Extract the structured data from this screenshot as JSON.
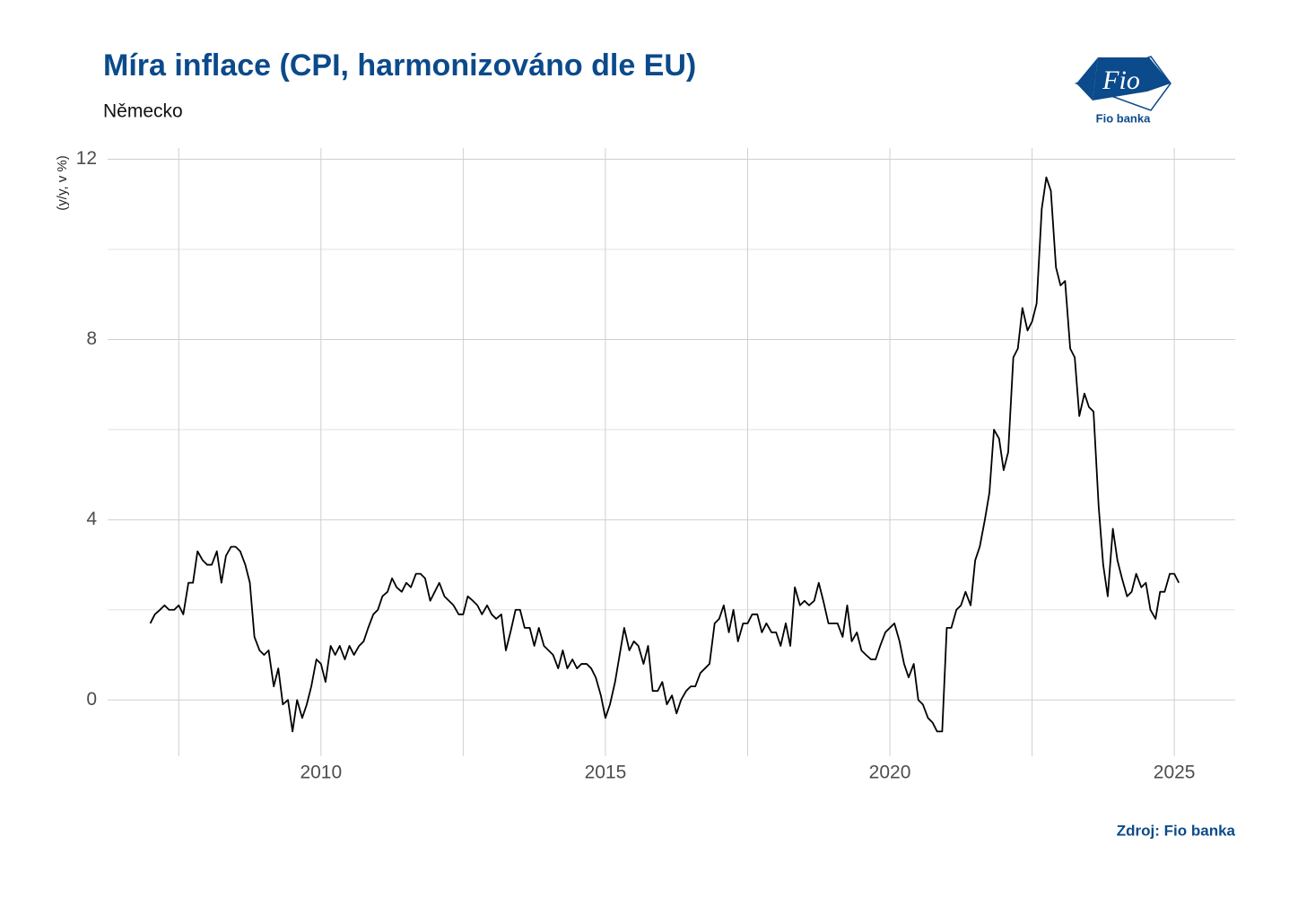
{
  "logo": {
    "mark": "Fio",
    "name": "Fio banka"
  },
  "chart_data": {
    "type": "line",
    "title": "Míra inflace (CPI, harmonizováno dle EU)",
    "subtitle": "Německo",
    "y_label": "(y/y, v %)",
    "source": "Zdroj: Fio banka",
    "color": "#000000",
    "grid": true,
    "xlim": [
      2006.25,
      2026.07
    ],
    "xticks": [
      2010,
      2015,
      2020,
      2025
    ],
    "ylim": [
      -1.25,
      12.25
    ],
    "yticks": [
      0,
      4,
      8,
      12
    ],
    "x": [
      2007.0,
      2007.08,
      2007.17,
      2007.25,
      2007.33,
      2007.42,
      2007.5,
      2007.58,
      2007.67,
      2007.75,
      2007.83,
      2007.92,
      2008.0,
      2008.08,
      2008.17,
      2008.25,
      2008.33,
      2008.42,
      2008.5,
      2008.58,
      2008.67,
      2008.75,
      2008.83,
      2008.92,
      2009.0,
      2009.08,
      2009.17,
      2009.25,
      2009.33,
      2009.42,
      2009.5,
      2009.58,
      2009.67,
      2009.75,
      2009.83,
      2009.92,
      2010.0,
      2010.08,
      2010.17,
      2010.25,
      2010.33,
      2010.42,
      2010.5,
      2010.58,
      2010.67,
      2010.75,
      2010.83,
      2010.92,
      2011.0,
      2011.08,
      2011.17,
      2011.25,
      2011.33,
      2011.42,
      2011.5,
      2011.58,
      2011.67,
      2011.75,
      2011.83,
      2011.92,
      2012.0,
      2012.08,
      2012.17,
      2012.25,
      2012.33,
      2012.42,
      2012.5,
      2012.58,
      2012.67,
      2012.75,
      2012.83,
      2012.92,
      2013.0,
      2013.08,
      2013.17,
      2013.25,
      2013.33,
      2013.42,
      2013.5,
      2013.58,
      2013.67,
      2013.75,
      2013.83,
      2013.92,
      2014.0,
      2014.08,
      2014.17,
      2014.25,
      2014.33,
      2014.42,
      2014.5,
      2014.58,
      2014.67,
      2014.75,
      2014.83,
      2014.92,
      2015.0,
      2015.08,
      2015.17,
      2015.25,
      2015.33,
      2015.42,
      2015.5,
      2015.58,
      2015.67,
      2015.75,
      2015.83,
      2015.92,
      2016.0,
      2016.08,
      2016.17,
      2016.25,
      2016.33,
      2016.42,
      2016.5,
      2016.58,
      2016.67,
      2016.75,
      2016.83,
      2016.92,
      2017.0,
      2017.08,
      2017.17,
      2017.25,
      2017.33,
      2017.42,
      2017.5,
      2017.58,
      2017.67,
      2017.75,
      2017.83,
      2017.92,
      2018.0,
      2018.08,
      2018.17,
      2018.25,
      2018.33,
      2018.42,
      2018.5,
      2018.58,
      2018.67,
      2018.75,
      2018.83,
      2018.92,
      2019.0,
      2019.08,
      2019.17,
      2019.25,
      2019.33,
      2019.42,
      2019.5,
      2019.58,
      2019.67,
      2019.75,
      2019.83,
      2019.92,
      2020.0,
      2020.08,
      2020.17,
      2020.25,
      2020.33,
      2020.42,
      2020.5,
      2020.58,
      2020.67,
      2020.75,
      2020.83,
      2020.92,
      2021.0,
      2021.08,
      2021.17,
      2021.25,
      2021.33,
      2021.42,
      2021.5,
      2021.58,
      2021.67,
      2021.75,
      2021.83,
      2021.92,
      2022.0,
      2022.08,
      2022.17,
      2022.25,
      2022.33,
      2022.42,
      2022.5,
      2022.58,
      2022.67,
      2022.75,
      2022.83,
      2022.92,
      2023.0,
      2023.08,
      2023.17,
      2023.25,
      2023.33,
      2023.42,
      2023.5,
      2023.58,
      2023.67,
      2023.75,
      2023.83,
      2023.92,
      2024.0,
      2024.08,
      2024.17,
      2024.25,
      2024.33,
      2024.42,
      2024.5,
      2024.58,
      2024.67,
      2024.75,
      2024.83,
      2024.92,
      2025.0,
      2025.08
    ],
    "values": [
      1.7,
      1.9,
      2.0,
      2.1,
      2.0,
      2.0,
      2.1,
      1.9,
      2.6,
      2.6,
      3.3,
      3.1,
      3.0,
      3.0,
      3.3,
      2.6,
      3.2,
      3.4,
      3.4,
      3.3,
      3.0,
      2.6,
      1.4,
      1.1,
      1.0,
      1.1,
      0.3,
      0.7,
      -0.1,
      0.0,
      -0.7,
      0.0,
      -0.4,
      -0.1,
      0.3,
      0.9,
      0.8,
      0.4,
      1.2,
      1.0,
      1.2,
      0.9,
      1.2,
      1.0,
      1.2,
      1.3,
      1.6,
      1.9,
      2.0,
      2.3,
      2.4,
      2.7,
      2.5,
      2.4,
      2.6,
      2.5,
      2.8,
      2.8,
      2.7,
      2.2,
      2.4,
      2.6,
      2.3,
      2.2,
      2.1,
      1.9,
      1.9,
      2.3,
      2.2,
      2.1,
      1.9,
      2.1,
      1.9,
      1.8,
      1.9,
      1.1,
      1.5,
      2.0,
      2.0,
      1.6,
      1.6,
      1.2,
      1.6,
      1.2,
      1.1,
      1.0,
      0.7,
      1.1,
      0.7,
      0.9,
      0.7,
      0.8,
      0.8,
      0.7,
      0.5,
      0.1,
      -0.4,
      -0.1,
      0.4,
      1.0,
      1.6,
      1.1,
      1.3,
      1.2,
      0.8,
      1.2,
      0.2,
      0.2,
      0.4,
      -0.1,
      0.1,
      -0.3,
      0.0,
      0.2,
      0.3,
      0.3,
      0.6,
      0.7,
      0.8,
      1.7,
      1.8,
      2.1,
      1.5,
      2.0,
      1.3,
      1.7,
      1.7,
      1.9,
      1.9,
      1.5,
      1.7,
      1.5,
      1.5,
      1.2,
      1.7,
      1.2,
      2.5,
      2.1,
      2.2,
      2.1,
      2.2,
      2.6,
      2.2,
      1.7,
      1.7,
      1.7,
      1.4,
      2.1,
      1.3,
      1.5,
      1.1,
      1.0,
      0.9,
      0.9,
      1.2,
      1.5,
      1.6,
      1.7,
      1.3,
      0.8,
      0.5,
      0.8,
      0.0,
      -0.1,
      -0.4,
      -0.5,
      -0.7,
      -0.7,
      1.6,
      1.6,
      2.0,
      2.1,
      2.4,
      2.1,
      3.1,
      3.4,
      4.0,
      4.6,
      6.0,
      5.8,
      5.1,
      5.5,
      7.6,
      7.8,
      8.7,
      8.2,
      8.4,
      8.8,
      10.9,
      11.6,
      11.3,
      9.6,
      9.2,
      9.3,
      7.8,
      7.6,
      6.3,
      6.8,
      6.5,
      6.4,
      4.3,
      3.0,
      2.3,
      3.8,
      3.1,
      2.7,
      2.3,
      2.4,
      2.8,
      2.5,
      2.6,
      2.0,
      1.8,
      2.4,
      2.4,
      2.8,
      2.8,
      2.6
    ]
  }
}
